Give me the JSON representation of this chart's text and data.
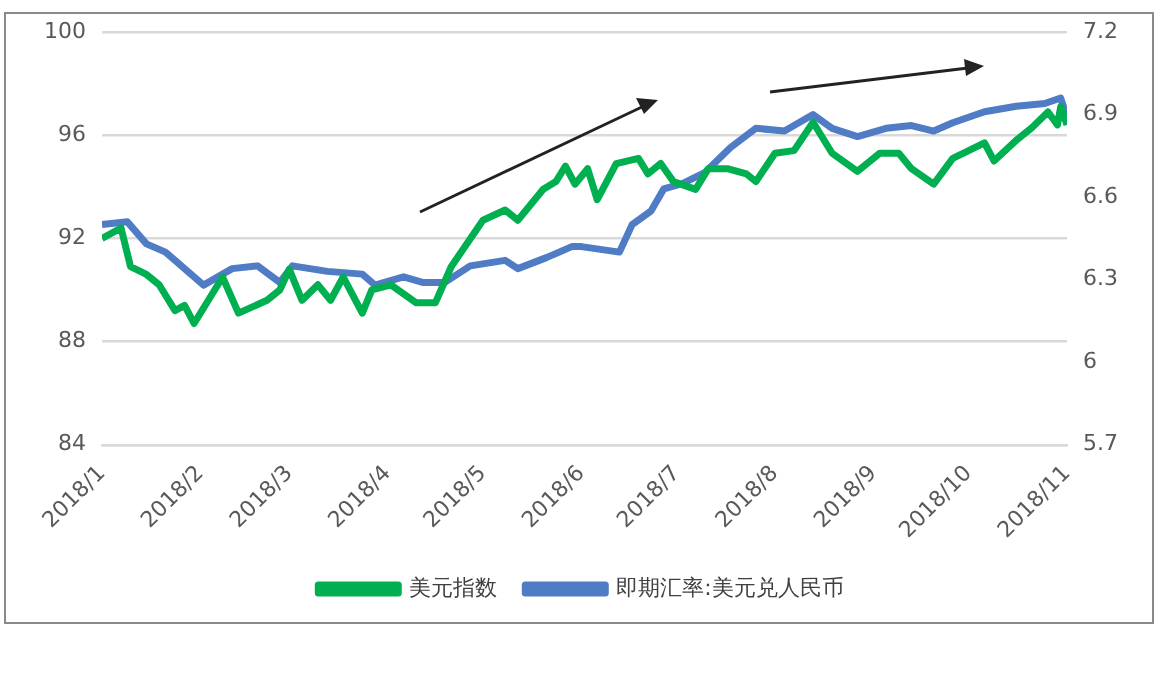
{
  "chart_data": {
    "type": "line",
    "xlim": [
      "2018-01-01",
      "2018-11-01"
    ],
    "xticks": [
      {
        "value": "2018-01-01",
        "label": "2018/1"
      },
      {
        "value": "2018-02-01",
        "label": "2018/2"
      },
      {
        "value": "2018-03-01",
        "label": "2018/3"
      },
      {
        "value": "2018-04-01",
        "label": "2018/4"
      },
      {
        "value": "2018-05-01",
        "label": "2018/5"
      },
      {
        "value": "2018-06-01",
        "label": "2018/6"
      },
      {
        "value": "2018-07-01",
        "label": "2018/7"
      },
      {
        "value": "2018-08-01",
        "label": "2018/8"
      },
      {
        "value": "2018-09-01",
        "label": "2018/9"
      },
      {
        "value": "2018-10-01",
        "label": "2018/10"
      },
      {
        "value": "2018-11-01",
        "label": "2018/11"
      }
    ],
    "ylim": [
      84,
      100
    ],
    "yticks": [
      84,
      88,
      92,
      96,
      100
    ],
    "y2lim": [
      5.7,
      7.2
    ],
    "y2ticks": [
      {
        "value": 5.7,
        "label": "5.7"
      },
      {
        "value": 6,
        "label": "6"
      },
      {
        "value": 6.3,
        "label": "6.3"
      },
      {
        "value": 6.6,
        "label": "6.6"
      },
      {
        "value": 6.9,
        "label": "6.9"
      },
      {
        "value": 7.2,
        "label": "7.2"
      }
    ],
    "grid": "y",
    "legend": "bottom",
    "marker": "none",
    "line_style": "solid",
    "series": [
      {
        "name": "美元指数",
        "color": "#00b050",
        "x": [
          "2018-01-01",
          "2018-01-07",
          "2018-01-10",
          "2018-01-15",
          "2018-01-19",
          "2018-01-24",
          "2018-01-27",
          "2018-01-30",
          "2018-02-05",
          "2018-02-08",
          "2018-02-13",
          "2018-02-22",
          "2018-02-26",
          "2018-03-01",
          "2018-03-05",
          "2018-03-10",
          "2018-03-14",
          "2018-03-18",
          "2018-03-24",
          "2018-03-27",
          "2018-04-02",
          "2018-04-10",
          "2018-04-16",
          "2018-04-21",
          "2018-05-01",
          "2018-05-08",
          "2018-05-12",
          "2018-05-20",
          "2018-05-24",
          "2018-05-27",
          "2018-05-30",
          "2018-06-03",
          "2018-06-06",
          "2018-06-12",
          "2018-06-19",
          "2018-06-22",
          "2018-06-26",
          "2018-06-30",
          "2018-07-07",
          "2018-07-11",
          "2018-07-17",
          "2018-07-23",
          "2018-07-26",
          "2018-08-01",
          "2018-08-07",
          "2018-08-13",
          "2018-08-19",
          "2018-08-27",
          "2018-09-03",
          "2018-09-09",
          "2018-09-13",
          "2018-09-20",
          "2018-09-26",
          "2018-10-06",
          "2018-10-09",
          "2018-10-16",
          "2018-10-21",
          "2018-10-26",
          "2018-10-29",
          "2018-10-30",
          "2018-11-01"
        ],
        "values": [
          92.0,
          92.4,
          90.9,
          90.6,
          90.2,
          89.2,
          89.4,
          88.7,
          89.9,
          90.5,
          89.1,
          89.6,
          90.0,
          90.8,
          89.6,
          90.2,
          89.6,
          90.5,
          89.1,
          90.0,
          90.2,
          89.5,
          89.5,
          90.9,
          92.7,
          93.1,
          92.7,
          93.9,
          94.2,
          94.8,
          94.1,
          94.7,
          93.5,
          94.9,
          95.1,
          94.5,
          94.9,
          94.2,
          93.9,
          94.7,
          94.7,
          94.5,
          94.2,
          95.3,
          95.4,
          96.5,
          95.3,
          94.6,
          95.3,
          95.3,
          94.7,
          94.1,
          95.1,
          95.7,
          95.0,
          95.8,
          96.3,
          96.9,
          96.4,
          97.1,
          96.4
        ]
      },
      {
        "name": "即期汇率:美元兑人民币",
        "color": "#4f7cc4",
        "axis": "y2",
        "x": [
          "2018-01-01",
          "2018-01-09",
          "2018-01-15",
          "2018-01-21",
          "2018-01-29",
          "2018-02-02",
          "2018-02-11",
          "2018-02-19",
          "2018-02-26",
          "2018-03-02",
          "2018-03-13",
          "2018-03-24",
          "2018-03-28",
          "2018-04-06",
          "2018-04-12",
          "2018-04-19",
          "2018-04-27",
          "2018-05-08",
          "2018-05-12",
          "2018-05-21",
          "2018-05-29",
          "2018-06-01",
          "2018-06-07",
          "2018-06-13",
          "2018-06-17",
          "2018-06-23",
          "2018-06-27",
          "2018-07-03",
          "2018-07-10",
          "2018-07-18",
          "2018-07-26",
          "2018-08-04",
          "2018-08-13",
          "2018-08-19",
          "2018-08-27",
          "2018-09-05",
          "2018-09-13",
          "2018-09-20",
          "2018-09-26",
          "2018-10-06",
          "2018-10-16",
          "2018-10-25",
          "2018-10-30",
          "2018-11-01"
        ],
        "values": [
          6.5,
          6.51,
          6.43,
          6.4,
          6.32,
          6.28,
          6.34,
          6.35,
          6.29,
          6.35,
          6.33,
          6.32,
          6.28,
          6.31,
          6.29,
          6.29,
          6.35,
          6.37,
          6.34,
          6.38,
          6.42,
          6.42,
          6.41,
          6.4,
          6.5,
          6.55,
          6.63,
          6.65,
          6.69,
          6.78,
          6.85,
          6.84,
          6.9,
          6.85,
          6.82,
          6.85,
          6.86,
          6.84,
          6.87,
          6.91,
          6.93,
          6.94,
          6.96,
          6.89
        ]
      }
    ]
  }
}
